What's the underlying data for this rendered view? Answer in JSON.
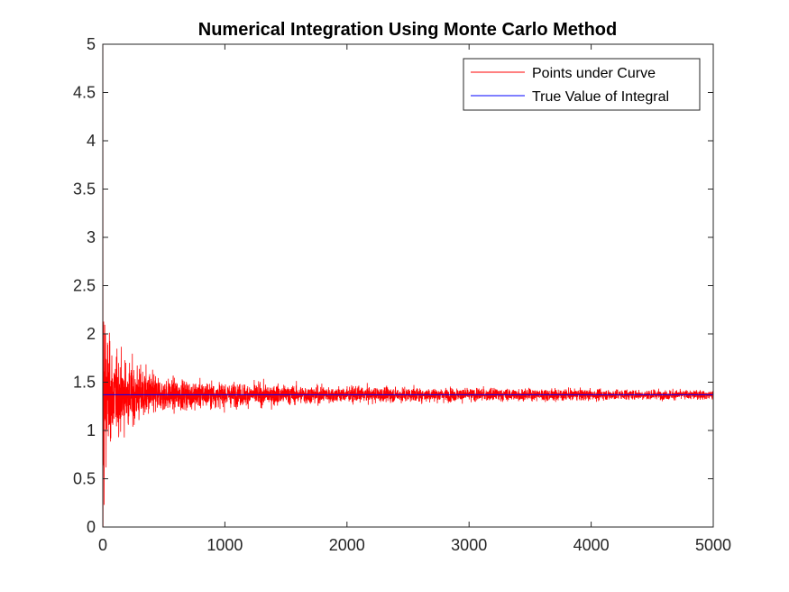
{
  "chart_data": {
    "type": "line",
    "title": "Numerical Integration Using Monte Carlo Method",
    "xlabel": "",
    "ylabel": "",
    "xlim": [
      0,
      5000
    ],
    "ylim": [
      0,
      5
    ],
    "x_ticks": [
      "0",
      "1000",
      "2000",
      "3000",
      "4000",
      "5000"
    ],
    "y_ticks": [
      "0",
      "0.5",
      "1",
      "1.5",
      "2",
      "2.5",
      "3",
      "3.5",
      "4",
      "4.5",
      "5"
    ],
    "grid": false,
    "legend_position": "top-right",
    "series": [
      {
        "name": "Points under Curve",
        "color": "#ff0000",
        "style": "noisy estimate converging",
        "n_points": 5000,
        "converges_to": 1.37,
        "initial_range": [
          0,
          5
        ],
        "envelope": [
          {
            "x": 100,
            "spread": 0.6
          },
          {
            "x": 500,
            "spread": 0.25
          },
          {
            "x": 1000,
            "spread": 0.18
          },
          {
            "x": 2000,
            "spread": 0.12
          },
          {
            "x": 3000,
            "spread": 0.1
          },
          {
            "x": 5000,
            "spread": 0.07
          }
        ]
      },
      {
        "name": "True Value of Integral",
        "color": "#0000ff",
        "x": [
          0,
          5000
        ],
        "y": [
          1.37,
          1.37
        ]
      }
    ]
  }
}
